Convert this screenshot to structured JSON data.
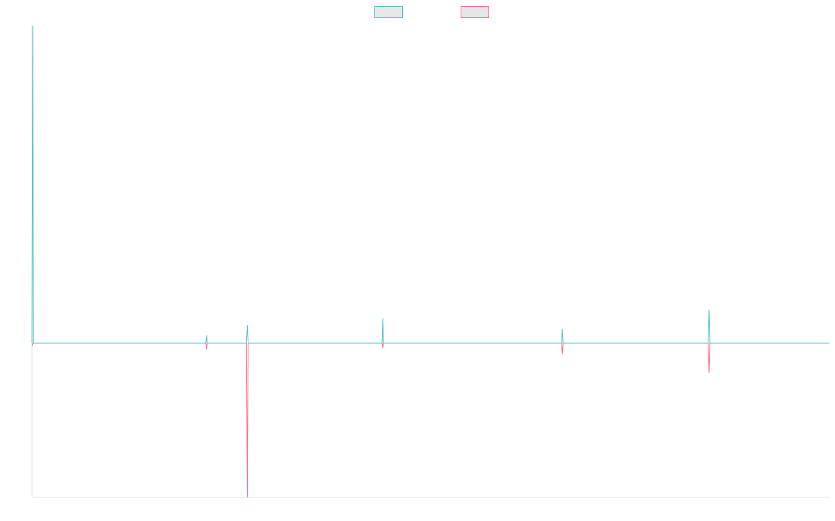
{
  "chart_data": {
    "type": "line",
    "title": "",
    "xlabel": "",
    "ylabel": "",
    "grid": false,
    "legend_position": "top-center",
    "x_range": [
      0,
      1000
    ],
    "ylim": [
      -100,
      205
    ],
    "series": [
      {
        "color": "#4bc0c0",
        "fill": "#e6e6e6",
        "points": [
          [
            0,
            0
          ],
          [
            1,
            205
          ],
          [
            2,
            0
          ],
          [
            218,
            0
          ],
          [
            219,
            5
          ],
          [
            220,
            0
          ],
          [
            269,
            0
          ],
          [
            270,
            11.5
          ],
          [
            271,
            0
          ],
          [
            439,
            0
          ],
          [
            440,
            16
          ],
          [
            441,
            0
          ],
          [
            664,
            0
          ],
          [
            665,
            9
          ],
          [
            666,
            0
          ],
          [
            848,
            0
          ],
          [
            849,
            21.5
          ],
          [
            850,
            0
          ],
          [
            1000,
            0
          ]
        ]
      },
      {
        "color": "#ff6384",
        "fill": "#e6e6e6",
        "points": [
          [
            0,
            -2
          ],
          [
            1,
            0
          ],
          [
            218,
            0
          ],
          [
            219,
            -4
          ],
          [
            220,
            0
          ],
          [
            269,
            0
          ],
          [
            270,
            -100
          ],
          [
            271,
            0
          ],
          [
            439,
            0
          ],
          [
            440,
            -3
          ],
          [
            441,
            0
          ],
          [
            664,
            0
          ],
          [
            665,
            -7
          ],
          [
            666,
            0
          ],
          [
            848,
            0
          ],
          [
            849,
            -19
          ],
          [
            850,
            0
          ],
          [
            1000,
            0
          ]
        ]
      }
    ]
  }
}
